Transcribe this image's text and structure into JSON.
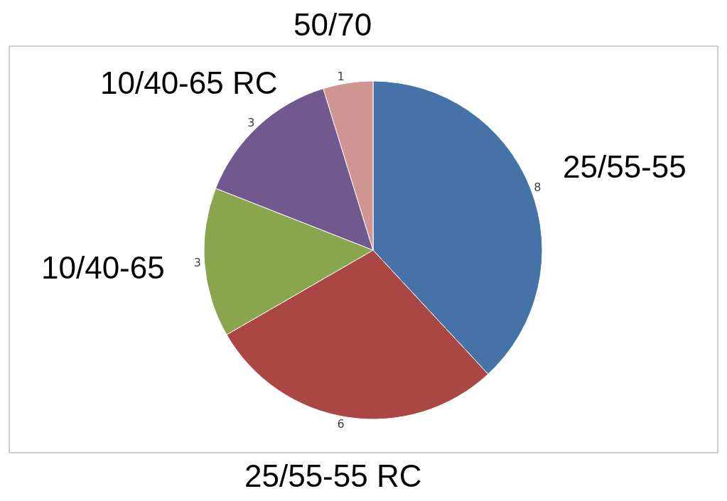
{
  "chart_data": {
    "type": "pie",
    "categories": [
      "25/55-55",
      "25/55-55 RC",
      "10/40-65",
      "10/40-65 RC",
      "50/70"
    ],
    "values": [
      8,
      6,
      3,
      3,
      1
    ],
    "colors": [
      "#4572a7",
      "#aa4643",
      "#89a54e",
      "#71588f",
      "#d09591"
    ],
    "data_labels": true,
    "legend": false
  }
}
